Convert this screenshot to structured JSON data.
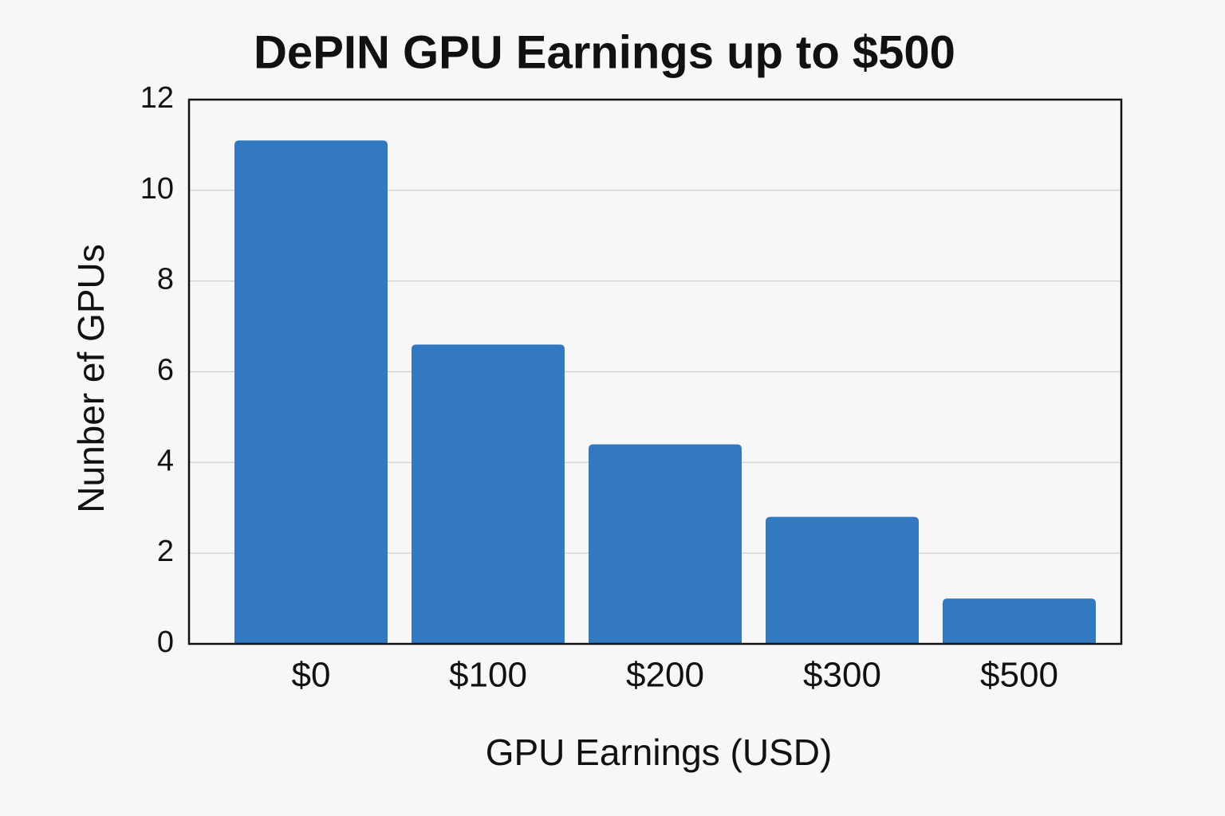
{
  "chart_data": {
    "type": "bar",
    "title": "DePIN GPU Earnings up to $500",
    "x_label": "GPU Earnings (USD)",
    "y_label": "Nunber ef GPUs",
    "categories": [
      "$0",
      "$100",
      "$200",
      "$300",
      "$500"
    ],
    "values": [
      11.1,
      6.6,
      4.4,
      2.8,
      1.0
    ],
    "color": "#3279c0",
    "ylim": [
      0,
      12
    ],
    "yticks": [
      0,
      2,
      4,
      6,
      8,
      10,
      12
    ],
    "grid": true
  }
}
